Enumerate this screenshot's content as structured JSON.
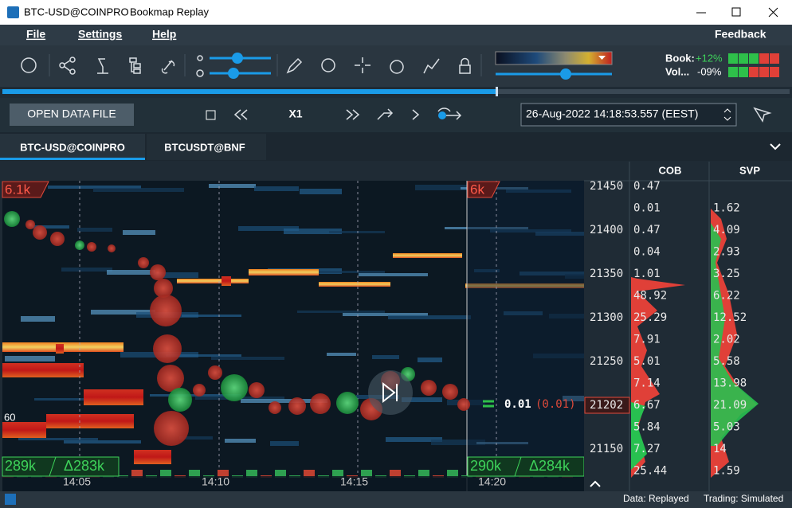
{
  "window": {
    "title": "BTC-USD@COINPRO",
    "app": "Bookmap Replay"
  },
  "menu": [
    "File",
    "Settings",
    "Help"
  ],
  "feedback": "Feedback",
  "toolbar": {
    "book_label": "Book:",
    "book_change": "+12%",
    "vol_label": "Vol...",
    "vol_change": "-09%"
  },
  "controls": {
    "open_file": "OPEN DATA FILE",
    "speed": "X1",
    "datetime": "26-Aug-2022 14:18:53.557 (EEST)"
  },
  "tabs": [
    "BTC-USD@COINPRO",
    "BTCUSDT@BNF"
  ],
  "heatmap": {
    "left_top": "6.1k",
    "right_top": "6k",
    "left_volume": "289k",
    "left_delta": "Δ283k",
    "right_volume": "290k",
    "right_delta": "Δ284k",
    "size_marker": "60",
    "time_labels": [
      "14:05",
      "14:10",
      "14:15",
      "14:20"
    ],
    "last_size": "0.01",
    "last_size_paren": "(0.01)"
  },
  "price_labels": [
    "21450",
    "21400",
    "21350",
    "21300",
    "21250",
    "21202",
    "21150"
  ],
  "cob": {
    "header": "COB",
    "values": [
      "0.47",
      "0.01",
      "0.47",
      "0.04",
      "1.01",
      "48.92",
      "25.29",
      "7.91",
      "5.01",
      "7.14",
      "6.67",
      "5.84",
      "7.27",
      "25.44"
    ]
  },
  "svp": {
    "header": "SVP",
    "values": [
      "1.62",
      "4.09",
      "2.93",
      "3.25",
      "6.22",
      "12.52",
      "2.02",
      "5.58",
      "13.98",
      "21.09",
      "5.03",
      "14",
      "1.59"
    ]
  },
  "status": {
    "data": "Data: Replayed",
    "trading": "Trading: Simulated"
  }
}
